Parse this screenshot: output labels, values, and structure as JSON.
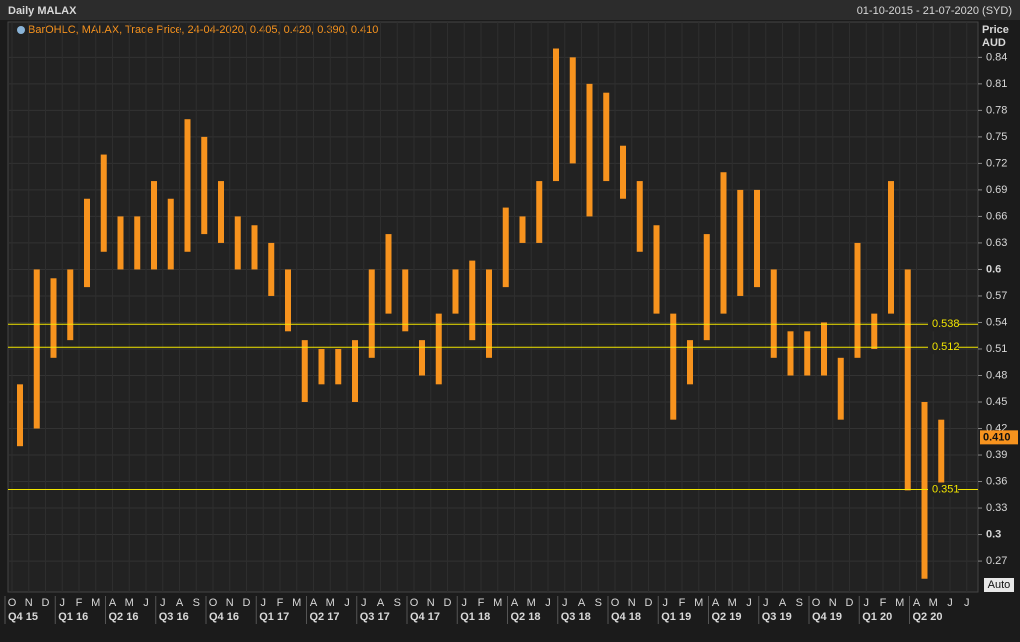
{
  "chart_data": {
    "type": "range_bar",
    "title": "Daily MALAX",
    "date_range": "01-10-2015 - 21-07-2020 (SYD)",
    "legend_text": "BarOHLC, MAI.AX, Trade Price, 24-04-2020, 0.405, 0.420, 0.390, 0.410",
    "y_label": "Price",
    "y_unit": "AUD",
    "button": "Auto",
    "color": "#f7931e",
    "categories": [
      "O",
      "N",
      "D",
      "J",
      "F",
      "M",
      "A",
      "M",
      "J",
      "J",
      "A",
      "S",
      "O",
      "N",
      "D",
      "J",
      "F",
      "M",
      "A",
      "M",
      "J",
      "J",
      "A",
      "S",
      "O",
      "N",
      "D",
      "J",
      "F",
      "M",
      "A",
      "M",
      "J",
      "J",
      "A",
      "S",
      "O",
      "N",
      "D",
      "J",
      "F",
      "M",
      "A",
      "M",
      "J",
      "J",
      "A",
      "S",
      "O",
      "N",
      "D",
      "J",
      "F",
      "M",
      "A",
      "M",
      "J",
      "J"
    ],
    "quarters": [
      "Q4 15",
      "Q1 16",
      "Q2 16",
      "Q3 16",
      "Q4 16",
      "Q1 17",
      "Q2 17",
      "Q3 17",
      "Q4 17",
      "Q1 18",
      "Q2 18",
      "Q3 18",
      "Q4 18",
      "Q1 19",
      "Q2 19",
      "Q3 19",
      "Q4 19",
      "Q1 20",
      "Q2 20"
    ],
    "high": [
      0.47,
      0.6,
      0.59,
      0.6,
      0.68,
      0.73,
      0.66,
      0.66,
      0.7,
      0.68,
      0.77,
      0.75,
      0.7,
      0.66,
      0.65,
      0.63,
      0.6,
      0.52,
      0.51,
      0.51,
      0.52,
      0.6,
      0.64,
      0.6,
      0.52,
      0.55,
      0.6,
      0.61,
      0.6,
      0.67,
      0.66,
      0.7,
      0.85,
      0.84,
      0.81,
      0.8,
      0.74,
      0.7,
      0.65,
      0.55,
      0.52,
      0.64,
      0.71,
      0.69,
      0.69,
      0.6,
      0.53,
      0.53,
      0.54,
      0.5,
      0.63,
      0.55,
      0.7,
      0.6,
      0.45,
      0.43,
      null,
      null
    ],
    "low": [
      0.4,
      0.42,
      0.5,
      0.52,
      0.58,
      0.62,
      0.6,
      0.6,
      0.6,
      0.6,
      0.62,
      0.64,
      0.63,
      0.6,
      0.6,
      0.57,
      0.53,
      0.45,
      0.47,
      0.47,
      0.45,
      0.5,
      0.55,
      0.53,
      0.48,
      0.47,
      0.55,
      0.52,
      0.5,
      0.58,
      0.63,
      0.63,
      0.7,
      0.72,
      0.66,
      0.7,
      0.68,
      0.62,
      0.55,
      0.43,
      0.47,
      0.52,
      0.55,
      0.57,
      0.58,
      0.5,
      0.48,
      0.48,
      0.48,
      0.43,
      0.5,
      0.51,
      0.55,
      0.35,
      0.25,
      0.35,
      null,
      null
    ],
    "levels": [
      0.538,
      0.512,
      0.351
    ],
    "level_color": "#f2e600",
    "last_price": {
      "value": 0.41,
      "label": "0.410"
    },
    "ylim": [
      0.235,
      0.88
    ],
    "yticks": [
      0.27,
      0.3,
      0.33,
      0.36,
      0.39,
      0.42,
      0.45,
      0.48,
      0.51,
      0.54,
      0.57,
      0.6,
      0.63,
      0.66,
      0.69,
      0.72,
      0.75,
      0.78,
      0.81,
      0.84
    ],
    "grid": true
  }
}
